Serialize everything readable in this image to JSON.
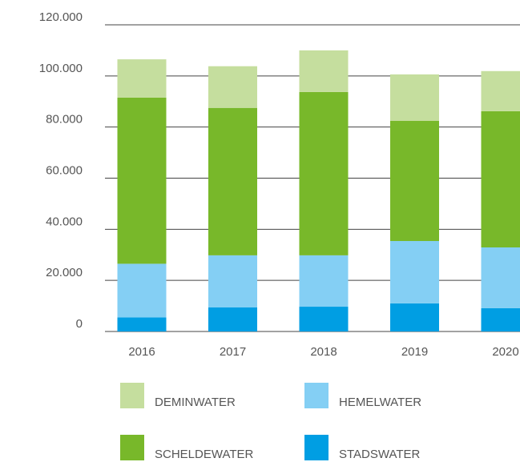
{
  "chart_data": {
    "type": "bar",
    "stacked": true,
    "categories": [
      "2016",
      "2017",
      "2018",
      "2019",
      "2020"
    ],
    "series": [
      {
        "name": "STADSWATER",
        "color": "#009ee3",
        "values": [
          5500,
          9400,
          9700,
          11000,
          9100
        ]
      },
      {
        "name": "HEMELWATER",
        "color": "#84cff4",
        "values": [
          21000,
          20400,
          20100,
          24400,
          23800
        ]
      },
      {
        "name": "SCHELDEWATER",
        "color": "#78b82a",
        "values": [
          65000,
          57700,
          63900,
          47000,
          53300
        ]
      },
      {
        "name": "DEMINWATER",
        "color": "#c5de9e",
        "values": [
          15000,
          16300,
          16300,
          18200,
          15700
        ]
      }
    ],
    "ylim": [
      0,
      120000
    ],
    "yticks": [
      0,
      {
        "value": 20000,
        "label": "20.000"
      },
      {
        "value": 40000,
        "label": "40.000"
      },
      {
        "value": 60000,
        "label": "60.000"
      },
      {
        "value": 80000,
        "label": "80.000"
      },
      {
        "value": 100000,
        "label": "100.000"
      },
      {
        "value": 120000,
        "label": "120.000"
      }
    ],
    "grid": true
  }
}
